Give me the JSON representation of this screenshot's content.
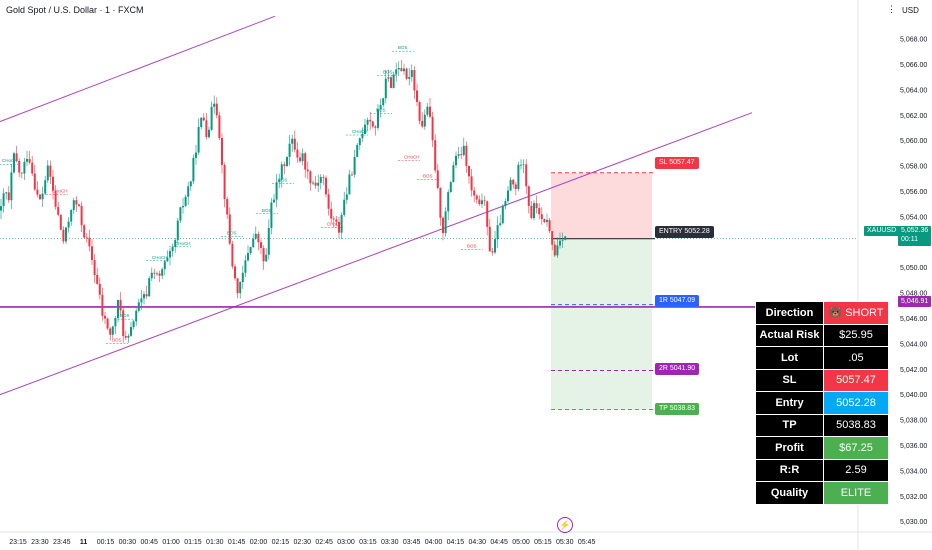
{
  "header": {
    "title": "Gold Spot / U.S. Dollar · 1 · FXCM",
    "currency": "USD"
  },
  "chart_data": {
    "type": "candlestick",
    "symbol": "XAUUSD",
    "ylim": [
      5029.5,
      5069.5
    ],
    "y_ticks": [
      "5,030.00",
      "5,032.00",
      "5,034.00",
      "5,036.00",
      "5,038.00",
      "5,040.00",
      "5,042.00",
      "5,044.00",
      "5,046.00",
      "5,048.00",
      "5,050.00",
      "5,052.00",
      "5,054.00",
      "5,056.00",
      "5,058.00",
      "5,060.00",
      "5,062.00",
      "5,064.00",
      "5,066.00",
      "5,068.00"
    ],
    "x_ticks": [
      "23:15",
      "23:30",
      "23:45",
      "11",
      "00:15",
      "00:30",
      "00:45",
      "01:00",
      "01:15",
      "01:30",
      "01:45",
      "02:00",
      "02:15",
      "02:30",
      "02:45",
      "03:00",
      "03:15",
      "03:30",
      "03:45",
      "04:00",
      "04:15",
      "04:30",
      "04:45",
      "05:00",
      "05:15",
      "05:30",
      "05:45"
    ],
    "price_path": [
      [
        0,
        5054.5
      ],
      [
        4,
        5056.2
      ],
      [
        8,
        5055
      ],
      [
        12,
        5058.8
      ],
      [
        16,
        5058.2
      ],
      [
        20,
        5057
      ],
      [
        24,
        5058.3
      ],
      [
        27,
        5059.2
      ],
      [
        30,
        5058
      ],
      [
        34,
        5056.5
      ],
      [
        38,
        5055
      ],
      [
        42,
        5056
      ],
      [
        46,
        5057.8
      ],
      [
        50,
        5057
      ],
      [
        54,
        5055
      ],
      [
        58,
        5053.8
      ],
      [
        62,
        5052
      ],
      [
        66,
        5053
      ],
      [
        70,
        5054.8
      ],
      [
        74,
        5055.2
      ],
      [
        78,
        5054.5
      ],
      [
        82,
        5053
      ],
      [
        86,
        5052
      ],
      [
        90,
        5051
      ],
      [
        94,
        5049.5
      ],
      [
        98,
        5048
      ],
      [
        102,
        5046
      ],
      [
        106,
        5045.5
      ],
      [
        110,
        5044.5
      ],
      [
        114,
        5046
      ],
      [
        118,
        5047.5
      ],
      [
        122,
        5045
      ],
      [
        126,
        5044
      ],
      [
        130,
        5045
      ],
      [
        134,
        5046.5
      ],
      [
        138,
        5047
      ],
      [
        142,
        5047.5
      ],
      [
        146,
        5048
      ],
      [
        150,
        5050
      ],
      [
        154,
        5049.5
      ],
      [
        158,
        5049
      ],
      [
        162,
        5050
      ],
      [
        166,
        5050.5
      ],
      [
        170,
        5051
      ],
      [
        174,
        5052
      ],
      [
        178,
        5054
      ],
      [
        182,
        5055
      ],
      [
        186,
        5056
      ],
      [
        190,
        5057
      ],
      [
        194,
        5059
      ],
      [
        198,
        5061
      ],
      [
        202,
        5062
      ],
      [
        206,
        5060.5
      ],
      [
        210,
        5062
      ],
      [
        214,
        5063.5
      ],
      [
        218,
        5061
      ],
      [
        222,
        5057
      ],
      [
        226,
        5054
      ],
      [
        230,
        5051
      ],
      [
        234,
        5049
      ],
      [
        238,
        5048
      ],
      [
        242,
        5049.5
      ],
      [
        246,
        5051
      ],
      [
        250,
        5052
      ],
      [
        254,
        5052.5
      ],
      [
        258,
        5052
      ],
      [
        262,
        5050.5
      ],
      [
        266,
        5051
      ],
      [
        270,
        5055
      ],
      [
        274,
        5056
      ],
      [
        278,
        5057
      ],
      [
        282,
        5058
      ],
      [
        286,
        5059
      ],
      [
        290,
        5060
      ],
      [
        294,
        5059.5
      ],
      [
        298,
        5058.5
      ],
      [
        302,
        5058.8
      ],
      [
        306,
        5057.5
      ],
      [
        310,
        5057
      ],
      [
        314,
        5056.5
      ],
      [
        318,
        5057
      ],
      [
        322,
        5057.3
      ],
      [
        326,
        5055
      ],
      [
        330,
        5054
      ],
      [
        334,
        5053.5
      ],
      [
        338,
        5053
      ],
      [
        342,
        5055
      ],
      [
        346,
        5056
      ],
      [
        350,
        5057.5
      ],
      [
        354,
        5058.5
      ],
      [
        358,
        5060
      ],
      [
        362,
        5061
      ],
      [
        366,
        5062
      ],
      [
        370,
        5061.5
      ],
      [
        374,
        5061
      ],
      [
        378,
        5062.5
      ],
      [
        382,
        5063.5
      ],
      [
        386,
        5065
      ],
      [
        390,
        5064.5
      ],
      [
        394,
        5065.5
      ],
      [
        398,
        5066
      ],
      [
        402,
        5065.5
      ],
      [
        406,
        5064.5
      ],
      [
        410,
        5066
      ],
      [
        414,
        5064
      ],
      [
        418,
        5062
      ],
      [
        422,
        5061
      ],
      [
        426,
        5063
      ],
      [
        430,
        5061
      ],
      [
        434,
        5058
      ],
      [
        438,
        5055
      ],
      [
        442,
        5053
      ],
      [
        446,
        5055
      ],
      [
        450,
        5057
      ],
      [
        454,
        5059
      ],
      [
        458,
        5058.5
      ],
      [
        462,
        5059.5
      ],
      [
        466,
        5058
      ],
      [
        470,
        5056
      ],
      [
        474,
        5055.5
      ],
      [
        478,
        5054.5
      ],
      [
        482,
        5056
      ],
      [
        486,
        5053
      ],
      [
        490,
        5051
      ],
      [
        494,
        5052
      ],
      [
        498,
        5053.5
      ],
      [
        502,
        5054.5
      ],
      [
        506,
        5055.5
      ],
      [
        510,
        5057
      ],
      [
        514,
        5056
      ],
      [
        518,
        5058
      ],
      [
        522,
        5059
      ],
      [
        526,
        5056
      ],
      [
        530,
        5054
      ],
      [
        534,
        5055
      ],
      [
        538,
        5054.5
      ],
      [
        542,
        5053
      ],
      [
        546,
        5054
      ],
      [
        550,
        5052
      ],
      [
        554,
        5051
      ],
      [
        558,
        5052.3
      ],
      [
        562,
        5052.6
      ],
      [
        566,
        5052.4
      ]
    ],
    "channel": {
      "upper": [
        [
          -10,
          5061.2
        ],
        [
          275,
          5069.8
        ]
      ],
      "lower": [
        [
          -10,
          5039.7
        ],
        [
          752,
          5062.2
        ]
      ]
    },
    "horizontal_level": 5046.91,
    "trade_lines": [
      {
        "label": "SL 5057.47",
        "price": 5057.47,
        "color": "#f23645"
      },
      {
        "label": "ENTRY 5052.28",
        "price": 5052.28,
        "color": "#2a2e39"
      },
      {
        "label": "1R 5047.09",
        "price": 5047.09,
        "color": "#2962ff"
      },
      {
        "label": "2R 5041.90",
        "price": 5041.9,
        "color": "#9c27b0"
      },
      {
        "label": "TP 5038.83",
        "price": 5038.83,
        "color": "#4caf50"
      }
    ],
    "annotations": [
      {
        "text": "CHoCH",
        "t": 2,
        "price": 5058.3,
        "color": "#089981"
      },
      {
        "text": "CHoCH",
        "t": 52,
        "price": 5055.9,
        "color": "#f23645"
      },
      {
        "text": "CHoCH",
        "t": 152,
        "price": 5050.7,
        "color": "#089981"
      },
      {
        "text": "CHoCH",
        "t": 175,
        "price": 5051.8,
        "color": "#089981"
      },
      {
        "text": "BOS",
        "t": 112,
        "price": 5044.2,
        "color": "#f23645"
      },
      {
        "text": "BOS",
        "t": 120,
        "price": 5046.1,
        "color": "#089981"
      },
      {
        "text": "BOS",
        "t": 227,
        "price": 5052.6,
        "color": "#089981"
      },
      {
        "text": "BOS",
        "t": 262,
        "price": 5054.4,
        "color": "#089981"
      },
      {
        "text": "BOS",
        "t": 278,
        "price": 5056.8,
        "color": "#089981"
      },
      {
        "text": "CHoCH",
        "t": 327,
        "price": 5053.3,
        "color": "#f23645"
      },
      {
        "text": "CHoCH",
        "t": 352,
        "price": 5060.6,
        "color": "#089981"
      },
      {
        "text": "BOS",
        "t": 376,
        "price": 5062.3,
        "color": "#089981"
      },
      {
        "text": "BOS",
        "t": 383,
        "price": 5065.3,
        "color": "#089981"
      },
      {
        "text": "BOS",
        "t": 398,
        "price": 5067.2,
        "color": "#089981"
      },
      {
        "text": "CHoCH",
        "t": 404,
        "price": 5058.6,
        "color": "#f23645"
      },
      {
        "text": "BOS",
        "t": 423,
        "price": 5057.1,
        "color": "#f23645"
      },
      {
        "text": "BOS",
        "t": 467,
        "price": 5051.6,
        "color": "#f23645"
      }
    ],
    "price_badge": {
      "symbol": "XAUUSD",
      "price": "5,052.36",
      "countdown": "00:11"
    },
    "level_badge": "5,046.91"
  },
  "info_table": [
    {
      "key": "Direction",
      "value": "🐻 SHORT",
      "color": "#f23645"
    },
    {
      "key": "Actual Risk",
      "value": "$25.95",
      "color": "#000000"
    },
    {
      "key": "Lot",
      "value": ".05",
      "color": "#000000"
    },
    {
      "key": "SL",
      "value": "5057.47",
      "color": "#f23645"
    },
    {
      "key": "Entry",
      "value": "5052.28",
      "color": "#03a9f4"
    },
    {
      "key": "TP",
      "value": "5038.83",
      "color": "#000000"
    },
    {
      "key": "Profit",
      "value": "$67.25",
      "color": "#4caf50"
    },
    {
      "key": "R:R",
      "value": "2.59",
      "color": "#000000"
    },
    {
      "key": "Quality",
      "value": "ELITE",
      "color": "#4caf50"
    }
  ]
}
